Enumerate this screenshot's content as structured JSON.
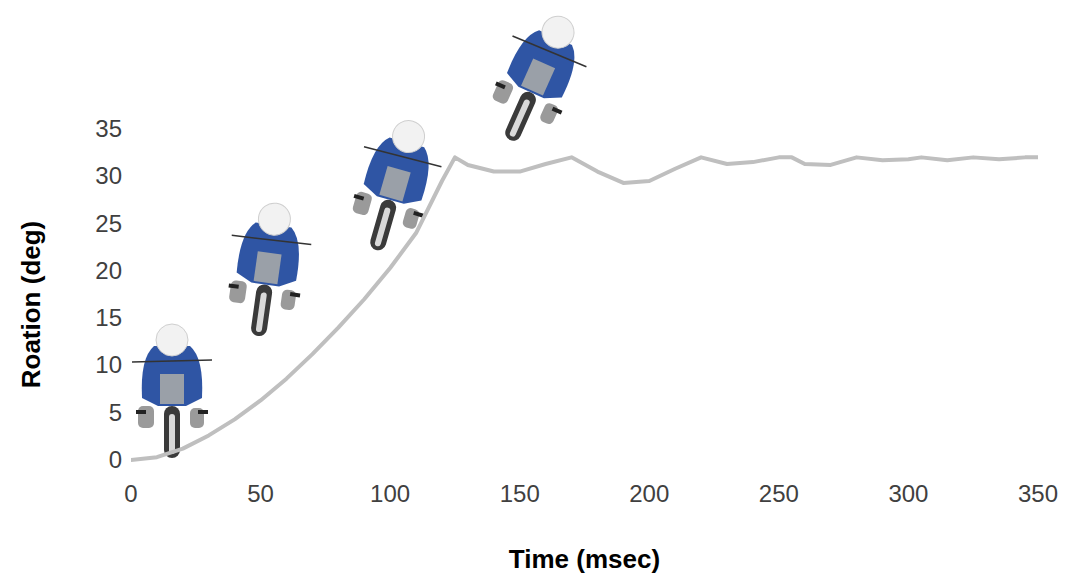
{
  "chart_data": {
    "type": "line",
    "x_label": "Time (msec)",
    "y_label": "Roation (deg)",
    "x": [
      0,
      10,
      20,
      30,
      40,
      50,
      60,
      70,
      80,
      90,
      100,
      110,
      120,
      125,
      130,
      140,
      150,
      160,
      170,
      180,
      190,
      200,
      210,
      220,
      230,
      240,
      250,
      255,
      260,
      270,
      280,
      290,
      300,
      305,
      315,
      325,
      335,
      345,
      350
    ],
    "values": [
      0,
      0.3,
      1.2,
      2.6,
      4.3,
      6.3,
      8.6,
      11.2,
      14,
      17,
      20.3,
      24,
      29.5,
      32,
      31.2,
      30.5,
      30.5,
      31.3,
      32,
      30.5,
      29.3,
      29.5,
      30.8,
      32,
      31.3,
      31.5,
      32,
      32,
      31.3,
      31.2,
      32,
      31.7,
      31.8,
      32,
      31.7,
      32,
      31.8,
      32,
      32
    ],
    "color": "#bfbfbf",
    "xlim": [
      0,
      350
    ],
    "xticks": [
      0,
      50,
      100,
      150,
      200,
      250,
      300,
      350
    ],
    "ylim": [
      0,
      35
    ],
    "yticks": [
      0,
      5,
      10,
      15,
      20,
      25,
      30,
      35
    ],
    "grid": false
  }
}
